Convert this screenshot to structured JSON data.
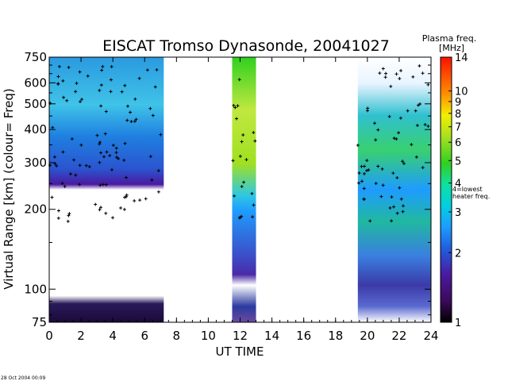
{
  "chart_data": {
    "type": "heatmap",
    "title": "EISCAT Tromso Dynasonde,  20041027",
    "xlabel": "UT TIME",
    "ylabel": "Virtual Range [km]   (colour= Freq)",
    "x_ticks": [
      0,
      2,
      4,
      6,
      8,
      10,
      12,
      14,
      16,
      18,
      20,
      22,
      24
    ],
    "xlim": [
      0,
      24
    ],
    "y_ticks": [
      75,
      100,
      200,
      300,
      400,
      500,
      600,
      750
    ],
    "ylim": [
      75,
      750
    ],
    "y_scale": "log",
    "colorbar": {
      "title": "Plasma freq.",
      "unit": "[MHz]",
      "ticks": [
        1,
        2,
        3,
        4,
        5,
        6,
        7,
        8,
        9,
        10,
        14
      ],
      "range": [
        1,
        14
      ],
      "scale": "log",
      "annotation_line1": "4=lowest",
      "annotation_line2": "heater freq."
    },
    "data_blocks": [
      {
        "x_start": 0,
        "x_end": 7.2
      },
      {
        "x_start": 11.5,
        "x_end": 13.0
      },
      {
        "x_start": 19.4,
        "x_end": 24
      }
    ],
    "footer": "28 Oct 2004 00:09"
  }
}
